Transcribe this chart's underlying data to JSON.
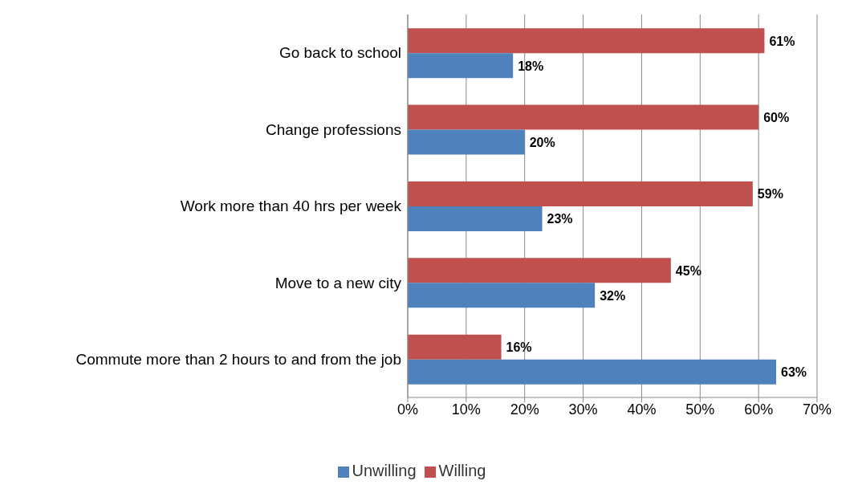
{
  "chart_data": {
    "type": "bar",
    "orientation": "horizontal",
    "categories": [
      "Go back to school",
      "Change professions",
      "Work more than 40 hrs per week",
      "Move to a new city",
      "Commute more than 2 hours to and from the job"
    ],
    "series": [
      {
        "name": "Willing",
        "color": "#c0504d",
        "values": [
          61,
          60,
          59,
          45,
          16
        ],
        "value_labels": [
          "61%",
          "60%",
          "59%",
          "45%",
          "16%"
        ]
      },
      {
        "name": "Unwilling",
        "color": "#4f81bd",
        "values": [
          18,
          20,
          23,
          32,
          63
        ],
        "value_labels": [
          "18%",
          "20%",
          "23%",
          "32%",
          "63%"
        ]
      }
    ],
    "xlim": [
      0,
      70
    ],
    "xticks": [
      {
        "value": 0,
        "label": "0%"
      },
      {
        "value": 10,
        "label": "10%"
      },
      {
        "value": 20,
        "label": "20%"
      },
      {
        "value": 30,
        "label": "30%"
      },
      {
        "value": 40,
        "label": "40%"
      },
      {
        "value": 50,
        "label": "50%"
      },
      {
        "value": 60,
        "label": "60%"
      },
      {
        "value": 70,
        "label": "70%"
      }
    ],
    "grid": "x",
    "legend": "bottom"
  }
}
